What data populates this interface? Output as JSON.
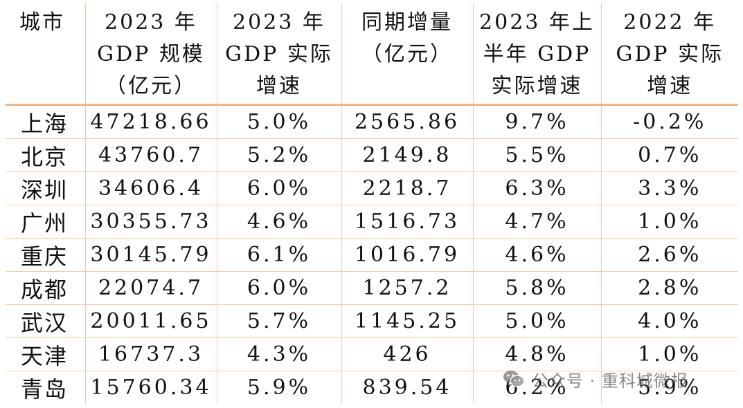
{
  "table": {
    "headers": [
      [
        "城市"
      ],
      [
        "2023 年",
        "GDP 规模",
        "（亿元）"
      ],
      [
        "2023 年",
        "GDP 实际",
        "增速"
      ],
      [
        "同期增量",
        "（亿元）"
      ],
      [
        "2023 年上",
        "半年 GDP",
        "实际增速"
      ],
      [
        "2022 年",
        "GDP 实际",
        "增速"
      ]
    ],
    "rows": [
      [
        "上海",
        "47218.66",
        "5.0%",
        "2565.86",
        "9.7%",
        "-0.2%"
      ],
      [
        "北京",
        "43760.7",
        "5.2%",
        "2149.8",
        "5.5%",
        "0.7%"
      ],
      [
        "深圳",
        "34606.4",
        "6.0%",
        "2218.7",
        "6.3%",
        "3.3%"
      ],
      [
        "广州",
        "30355.73",
        "4.6%",
        "1516.73",
        "4.7%",
        "1.0%"
      ],
      [
        "重庆",
        "30145.79",
        "6.1%",
        "1016.79",
        "4.6%",
        "2.6%"
      ],
      [
        "成都",
        "22074.7",
        "6.0%",
        "1257.2",
        "5.8%",
        "2.8%"
      ],
      [
        "武汉",
        "20011.65",
        "5.7%",
        "1145.25",
        "5.0%",
        "4.0%"
      ],
      [
        "天津",
        "16737.3",
        "4.3%",
        "426",
        "4.8%",
        "1.0%"
      ],
      [
        "青岛",
        "15760.34",
        "5.9%",
        "839.54",
        "6.2%",
        "5.9%"
      ]
    ]
  },
  "watermark": {
    "text": "公众号 · 重科城微报",
    "icon": "wechat-icon"
  },
  "colors": {
    "grid": "#f5c9a8",
    "header_rule": "#f0b585",
    "text": "#111111"
  }
}
